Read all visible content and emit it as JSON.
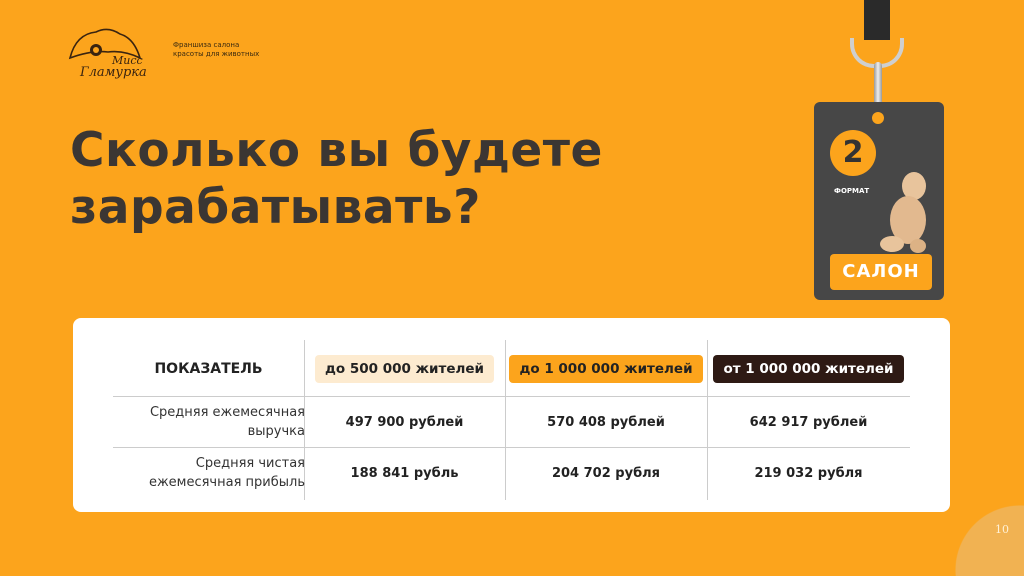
{
  "header": {
    "tagline_line1": "Франшиза салона",
    "tagline_line2": "красоты для животных",
    "logo_text": "Мисс Гламурка"
  },
  "title_line1": "Сколько вы будете",
  "title_line2": "зарабатывать?",
  "badge": {
    "number": "2",
    "label": "ФОРМАТ",
    "name": "САЛОН"
  },
  "table": {
    "header": "ПОКАЗАТЕЛЬ",
    "columns": [
      {
        "label": "до 500 000 жителей",
        "bg": "#fdebd0",
        "color": "#222222"
      },
      {
        "label": "до 1 000 000 жителей",
        "bg": "#fca41c",
        "color": "#222222"
      },
      {
        "label": "от 1 000 000 жителей",
        "bg": "#2e1a14",
        "color": "#ffffff"
      }
    ],
    "rows": [
      {
        "label_line1": "Средняя ежемесячная",
        "label_line2": "выручка",
        "values": [
          "497 900 рублей",
          "570 408 рублей",
          "642 917 рублей"
        ]
      },
      {
        "label_line1": "Средняя чистая",
        "label_line2": "ежемесячная прибыль",
        "values": [
          "188 841 рубль",
          "204 702 рубля",
          "219 032 рубля"
        ]
      }
    ]
  },
  "page_number": "10"
}
